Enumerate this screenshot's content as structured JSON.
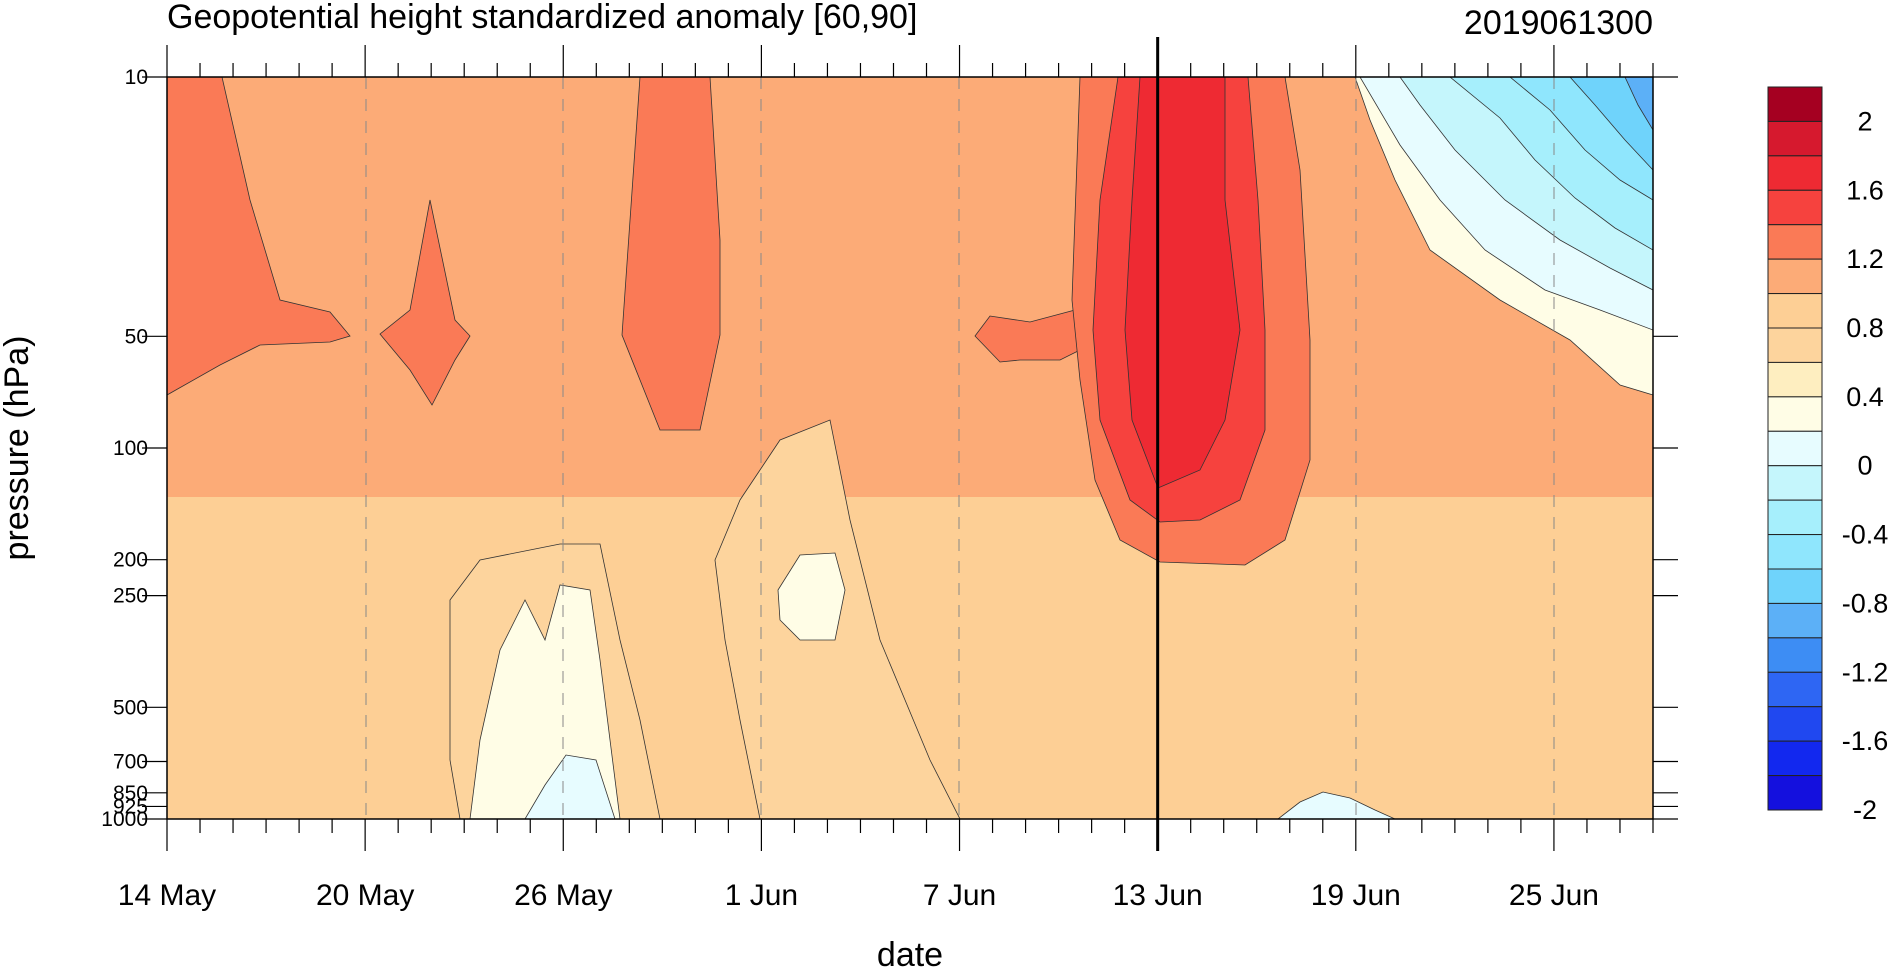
{
  "chart_data": {
    "type": "heatmap",
    "subtype": "filled-contour time-pressure section",
    "title": "Geopotential height standardized anomaly [60,90]",
    "right_title": "2019061300",
    "xlabel": "date",
    "ylabel": "pressure (hPa)",
    "x_tick_labels": [
      "14 May",
      "20 May",
      "26 May",
      "1 Jun",
      "7 Jun",
      "13 Jun",
      "19 Jun",
      "25 Jun"
    ],
    "x_range": [
      "2019-05-14",
      "2019-06-28"
    ],
    "y_ticks": [
      10,
      50,
      100,
      200,
      250,
      500,
      700,
      850,
      925,
      1000
    ],
    "y_tick_labels": [
      "10",
      "50",
      "100",
      "200",
      "250",
      "500",
      "700",
      "850",
      "925",
      "1000"
    ],
    "y_scale": "log",
    "y_reversed": true,
    "vertical_marker_date": "13 Jun",
    "grid": "dashed vertical lines at labelled dates",
    "colorbar": {
      "labels": [
        "2",
        "1.6",
        "1.2",
        "0.8",
        "0.4",
        "0",
        "-0.4",
        "-0.8",
        "-1.2",
        "-1.6",
        "-2"
      ],
      "levels": [
        -2.2,
        -2,
        -1.8,
        -1.6,
        -1.4,
        -1.2,
        -1,
        -0.8,
        -0.6,
        -0.4,
        -0.2,
        0,
        0.2,
        0.4,
        0.6,
        0.8,
        1,
        1.2,
        1.4,
        1.6,
        1.8,
        2,
        2.2
      ],
      "colors": [
        "#a50021",
        "#d6192e",
        "#ee2a33",
        "#f6423e",
        "#fa7a56",
        "#fcab77",
        "#fdcf95",
        "#fdd49d",
        "#feeec0",
        "#fffde6",
        "#e7fcff",
        "#c5f6fc",
        "#a6effc",
        "#8fe6fd",
        "#6fd3fb",
        "#5cb0f7",
        "#3d8df4",
        "#2e66f3",
        "#2048f0",
        "#1228ef",
        "#1410de"
      ]
    },
    "regions": [
      {
        "value": 0.9,
        "description": "background anomaly, upper half"
      },
      {
        "value": 0.7,
        "description": "background anomaly, lower half"
      },
      {
        "value": 1.3,
        "description": "upper stratosphere maximum mid-May"
      },
      {
        "value": 1.3,
        "description": "stratospheric maximum late May"
      },
      {
        "value": 1.9,
        "description": "stratospheric maximum 13 Jun"
      },
      {
        "value": -0.9,
        "description": "upper-level negative anomaly late June"
      },
      {
        "value": 0.2,
        "description": "lower troposphere near-zero anomaly late May"
      }
    ]
  }
}
